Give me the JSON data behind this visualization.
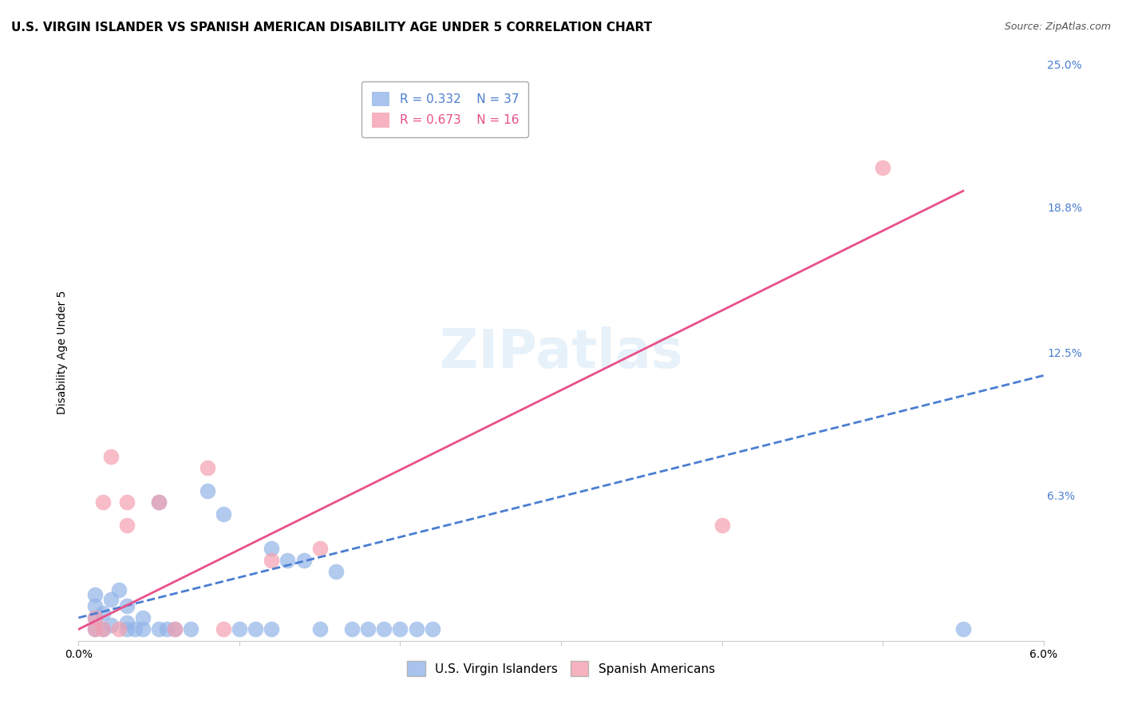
{
  "title": "U.S. VIRGIN ISLANDER VS SPANISH AMERICAN DISABILITY AGE UNDER 5 CORRELATION CHART",
  "source": "Source: ZipAtlas.com",
  "xlabel": "",
  "ylabel": "Disability Age Under 5",
  "xlim": [
    0.0,
    0.06
  ],
  "ylim": [
    0.0,
    0.25
  ],
  "xticks": [
    0.0,
    0.01,
    0.02,
    0.03,
    0.04,
    0.05,
    0.06
  ],
  "xtick_labels": [
    "0.0%",
    "",
    "",
    "",
    "",
    "",
    "6.0%"
  ],
  "ytick_labels_right": [
    "25.0%",
    "18.8%",
    "12.5%",
    "6.3%",
    ""
  ],
  "yticks_right": [
    0.25,
    0.188,
    0.125,
    0.063,
    0.0
  ],
  "watermark": "ZIPatlas",
  "legend1_r": "0.332",
  "legend1_n": "37",
  "legend2_r": "0.673",
  "legend2_n": "16",
  "vi_color": "#92b4e8",
  "sa_color": "#f4a0b0",
  "vi_scatter_x": [
    0.001,
    0.001,
    0.001,
    0.001,
    0.0015,
    0.0015,
    0.002,
    0.002,
    0.0025,
    0.003,
    0.003,
    0.003,
    0.0035,
    0.004,
    0.004,
    0.005,
    0.005,
    0.0055,
    0.006,
    0.007,
    0.008,
    0.009,
    0.01,
    0.011,
    0.012,
    0.012,
    0.013,
    0.014,
    0.015,
    0.016,
    0.017,
    0.018,
    0.019,
    0.02,
    0.021,
    0.022,
    0.055
  ],
  "vi_scatter_y": [
    0.005,
    0.01,
    0.015,
    0.02,
    0.005,
    0.012,
    0.007,
    0.018,
    0.022,
    0.005,
    0.008,
    0.015,
    0.005,
    0.005,
    0.01,
    0.005,
    0.06,
    0.005,
    0.005,
    0.005,
    0.065,
    0.055,
    0.005,
    0.005,
    0.005,
    0.04,
    0.035,
    0.035,
    0.005,
    0.03,
    0.005,
    0.005,
    0.005,
    0.005,
    0.005,
    0.005,
    0.005
  ],
  "sa_scatter_x": [
    0.001,
    0.001,
    0.0015,
    0.0015,
    0.002,
    0.0025,
    0.003,
    0.003,
    0.005,
    0.006,
    0.008,
    0.009,
    0.012,
    0.015,
    0.04,
    0.05
  ],
  "sa_scatter_y": [
    0.005,
    0.01,
    0.005,
    0.06,
    0.08,
    0.005,
    0.05,
    0.06,
    0.06,
    0.005,
    0.075,
    0.005,
    0.035,
    0.04,
    0.05,
    0.205
  ],
  "vi_line_x": [
    0.0,
    0.06
  ],
  "vi_line_y": [
    0.01,
    0.115
  ],
  "sa_line_x": [
    0.0,
    0.055
  ],
  "sa_line_y": [
    0.005,
    0.195
  ],
  "background_color": "#ffffff",
  "grid_color": "#dddddd",
  "title_fontsize": 11,
  "axis_label_fontsize": 10,
  "tick_fontsize": 10,
  "legend_fontsize": 11,
  "watermark_fontsize": 48
}
